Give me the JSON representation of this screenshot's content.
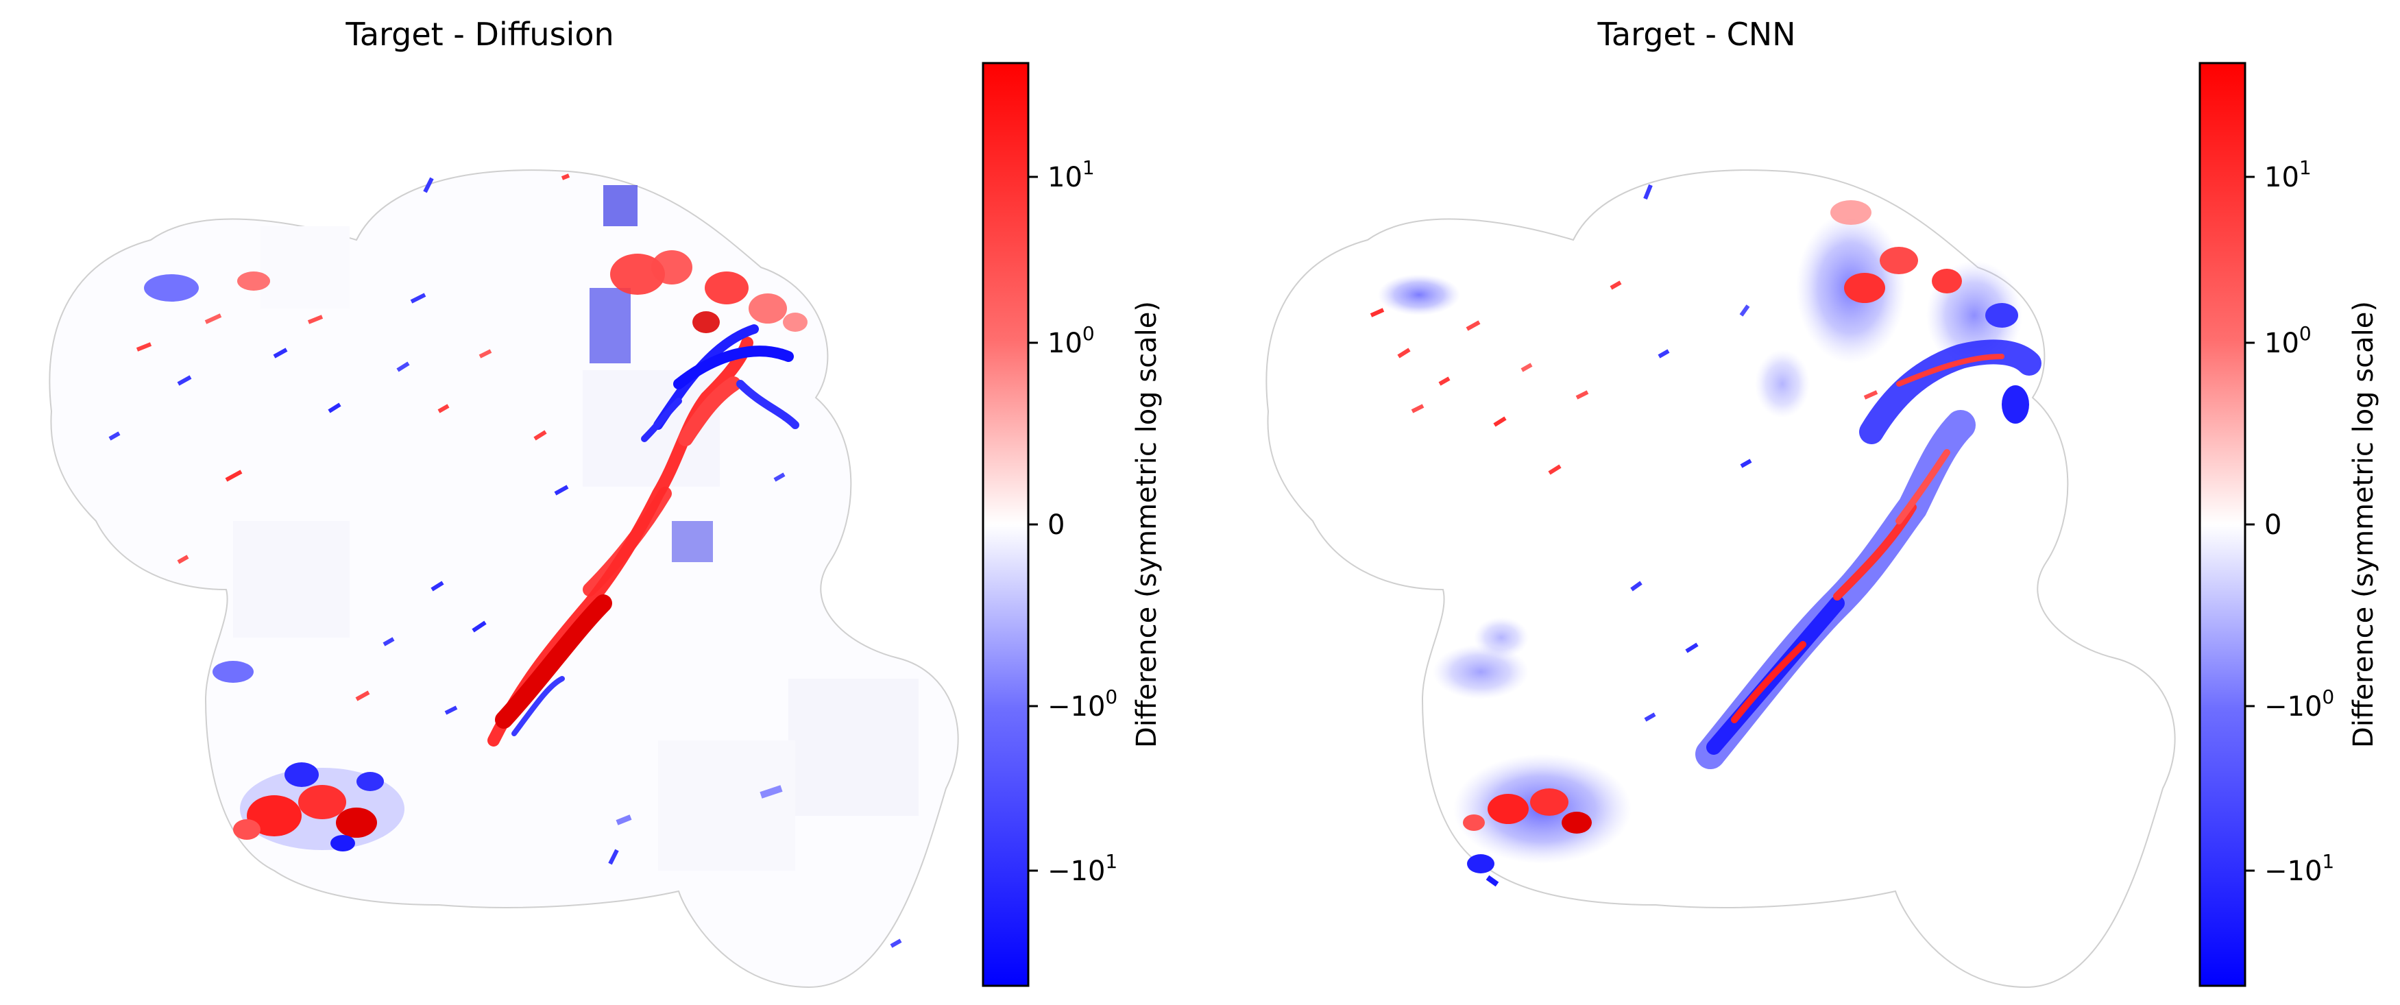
{
  "panels": [
    {
      "title": "Target - Diffusion",
      "colorbar": {
        "label": "Difference (symmetric log scale)",
        "ticks": [
          {
            "base": "10",
            "exp": "1",
            "value": 10
          },
          {
            "base": "10",
            "exp": "0",
            "value": 1
          },
          {
            "base": "0",
            "exp": "",
            "value": 0
          },
          {
            "base": "−10",
            "exp": "0",
            "value": -1
          },
          {
            "base": "−10",
            "exp": "1",
            "value": -10
          }
        ]
      }
    },
    {
      "title": "Target - CNN",
      "colorbar": {
        "label": "Difference (symmetric log scale)",
        "ticks": [
          {
            "base": "10",
            "exp": "1",
            "value": 10
          },
          {
            "base": "10",
            "exp": "0",
            "value": 1
          },
          {
            "base": "0",
            "exp": "",
            "value": 0
          },
          {
            "base": "−10",
            "exp": "0",
            "value": -1
          },
          {
            "base": "−10",
            "exp": "1",
            "value": -10
          }
        ]
      }
    }
  ],
  "colormap": {
    "name": "bwr",
    "positive": "#ff0000",
    "zero": "#ffffff",
    "negative": "#0000ff"
  },
  "colors": {
    "red": "#ff0000",
    "blue": "#0000ff",
    "outline": "#cfcfcf"
  }
}
